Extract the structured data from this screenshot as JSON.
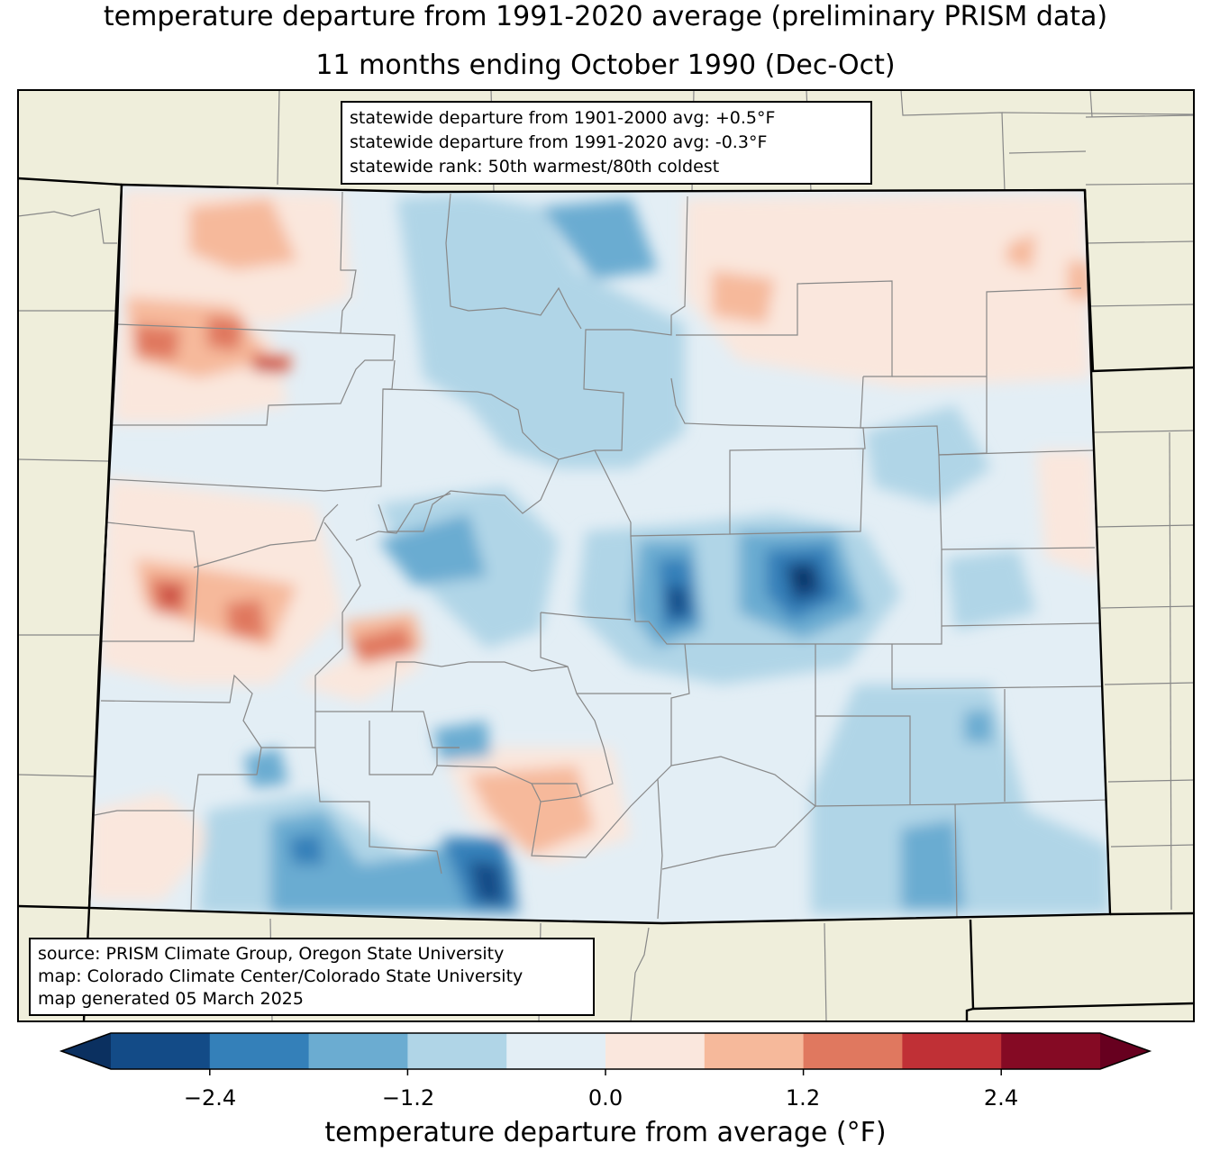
{
  "title": {
    "line1": "temperature departure from 1991-2020 average (preliminary PRISM data)",
    "line2": "11 months ending October 1990 (Dec-Oct)"
  },
  "stats_box": {
    "line1": "statewide departure from 1901-2000 avg: +0.5°F",
    "line2": "statewide departure from 1991-2020 avg: -0.3°F",
    "line3": "statewide rank: 50th warmest/80th coldest"
  },
  "credits_box": {
    "line1": "source: PRISM Climate Group, Oregon State University",
    "line2": "map: Colorado Climate Center/Colorado State University",
    "line3": "map generated 05 March 2025"
  },
  "colorbar": {
    "label": "temperature departure from average (°F)",
    "ticks": [
      "−2.4",
      "−1.2",
      "0.0",
      "1.2",
      "2.4"
    ],
    "levels": [
      -3.0,
      -2.4,
      -1.8,
      -1.2,
      -0.6,
      0.0,
      0.6,
      1.2,
      1.8,
      2.4,
      3.0
    ],
    "colors": [
      "#134b87",
      "#3480b9",
      "#6bacd1",
      "#b0d5e7",
      "#e3eef5",
      "#fae7dd",
      "#f6b99b",
      "#e0785f",
      "#c03036",
      "#850a24"
    ],
    "under_color": "#0b3060",
    "over_color": "#67001f"
  },
  "map_colors": {
    "background_land": "#efeedb",
    "county_lines": "#888888",
    "state_border": "#000000"
  }
}
